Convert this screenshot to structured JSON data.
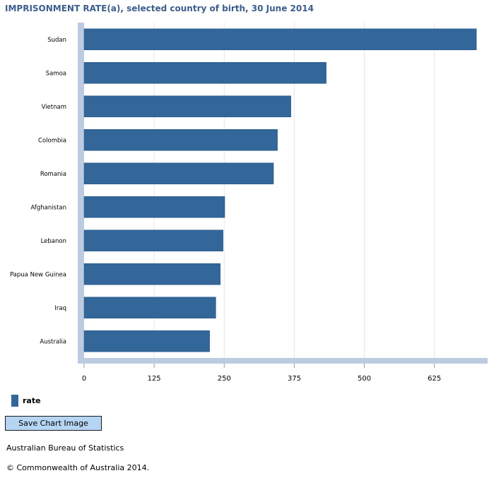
{
  "chart_data": {
    "type": "bar",
    "orientation": "horizontal",
    "title": "IMPRISONMENT RATE(a), selected country of birth, 30 June 2014",
    "categories": [
      "Sudan",
      "Samoa",
      "Vietnam",
      "Colombia",
      "Romania",
      "Afghanistan",
      "Lebanon",
      "Papua New Guinea",
      "Iraq",
      "Australia"
    ],
    "series": [
      {
        "name": "rate",
        "values": [
          700,
          432,
          369,
          345,
          338,
          251,
          248,
          243,
          235,
          224
        ]
      }
    ],
    "xlim": [
      0,
      720
    ],
    "xticks": [
      "0",
      "125",
      "250",
      "375",
      "500",
      "625"
    ],
    "xtick_values": [
      0,
      125,
      250,
      375,
      500,
      625
    ],
    "grid": "vertical",
    "legend_position": "bottom-left",
    "bar_color": "#336699",
    "grid_color": "#e6e6e6",
    "axis_color": "#bccbe0",
    "title_color": "#3b5e8b"
  },
  "legend": {
    "label": "rate"
  },
  "buttons": {
    "save_label": "Save Chart Image"
  },
  "footer": {
    "source": "Australian Bureau of Statistics",
    "copyright": "© Commonwealth of Australia 2014."
  }
}
